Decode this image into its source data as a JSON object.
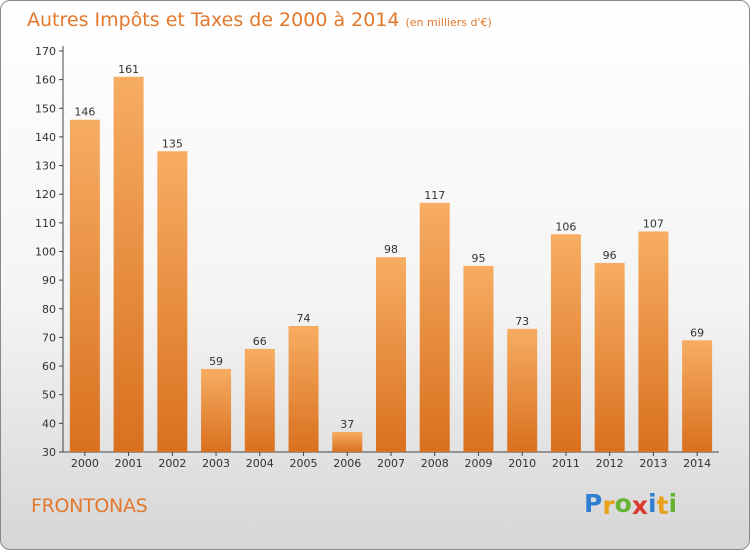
{
  "header": {
    "title": "Autres Impôts et Taxes de 2000 à 2014",
    "unit": "(en milliers d'€)"
  },
  "footer": {
    "place": "FRONTONAS",
    "logo": {
      "letters": [
        "P",
        "r",
        "o",
        "x",
        "i",
        "t",
        "i"
      ],
      "colors": [
        "#2f7fd1",
        "#e9a11a",
        "#66b334",
        "#d83a2e",
        "#2f7fd1",
        "#e9a11a",
        "#66b334"
      ]
    }
  },
  "colors": {
    "bar_light": "#f7ad62",
    "bar_dark": "#d9701f",
    "accent": "#e2782c"
  },
  "chart_data": {
    "type": "bar",
    "title": "Autres Impôts et Taxes de 2000 à 2014",
    "subtitle": "(en milliers d'€)",
    "xlabel": "",
    "ylabel": "",
    "categories": [
      "2000",
      "2001",
      "2002",
      "2003",
      "2004",
      "2005",
      "2006",
      "2007",
      "2008",
      "2009",
      "2010",
      "2011",
      "2012",
      "2013",
      "2014"
    ],
    "values": [
      146,
      161,
      135,
      59,
      66,
      74,
      37,
      98,
      117,
      95,
      73,
      106,
      96,
      107,
      69
    ],
    "ylim": [
      30,
      170
    ],
    "yticks": [
      30,
      40,
      50,
      60,
      70,
      80,
      90,
      100,
      110,
      120,
      130,
      140,
      150,
      160,
      170
    ],
    "grid": false,
    "legend": "none"
  }
}
